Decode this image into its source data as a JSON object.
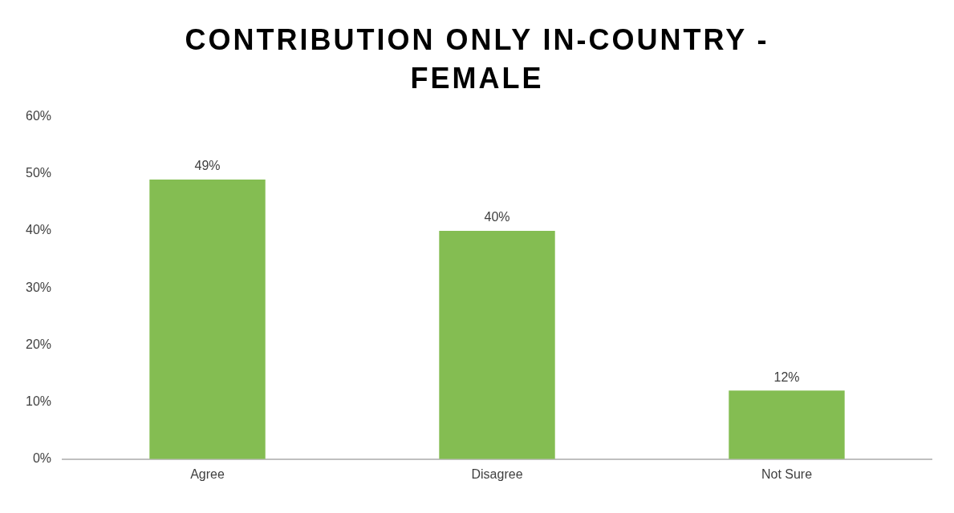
{
  "chart_data": {
    "type": "bar",
    "title": "CONTRIBUTION ONLY IN-COUNTRY - FEMALE",
    "categories": [
      "Agree",
      "Disagree",
      "Not Sure"
    ],
    "values": [
      49,
      40,
      12
    ],
    "color": "#84bd52",
    "value_labels": [
      "49%",
      "40%",
      "12%"
    ],
    "ylim": [
      0,
      60
    ],
    "yticks": [
      {
        "value": 0,
        "label": "0%"
      },
      {
        "value": 10,
        "label": "10%"
      },
      {
        "value": 20,
        "label": "20%"
      },
      {
        "value": 30,
        "label": "30%"
      },
      {
        "value": 40,
        "label": "40%"
      },
      {
        "value": 50,
        "label": "50%"
      },
      {
        "value": 60,
        "label": "60%"
      }
    ],
    "grid": false,
    "legend": false
  }
}
